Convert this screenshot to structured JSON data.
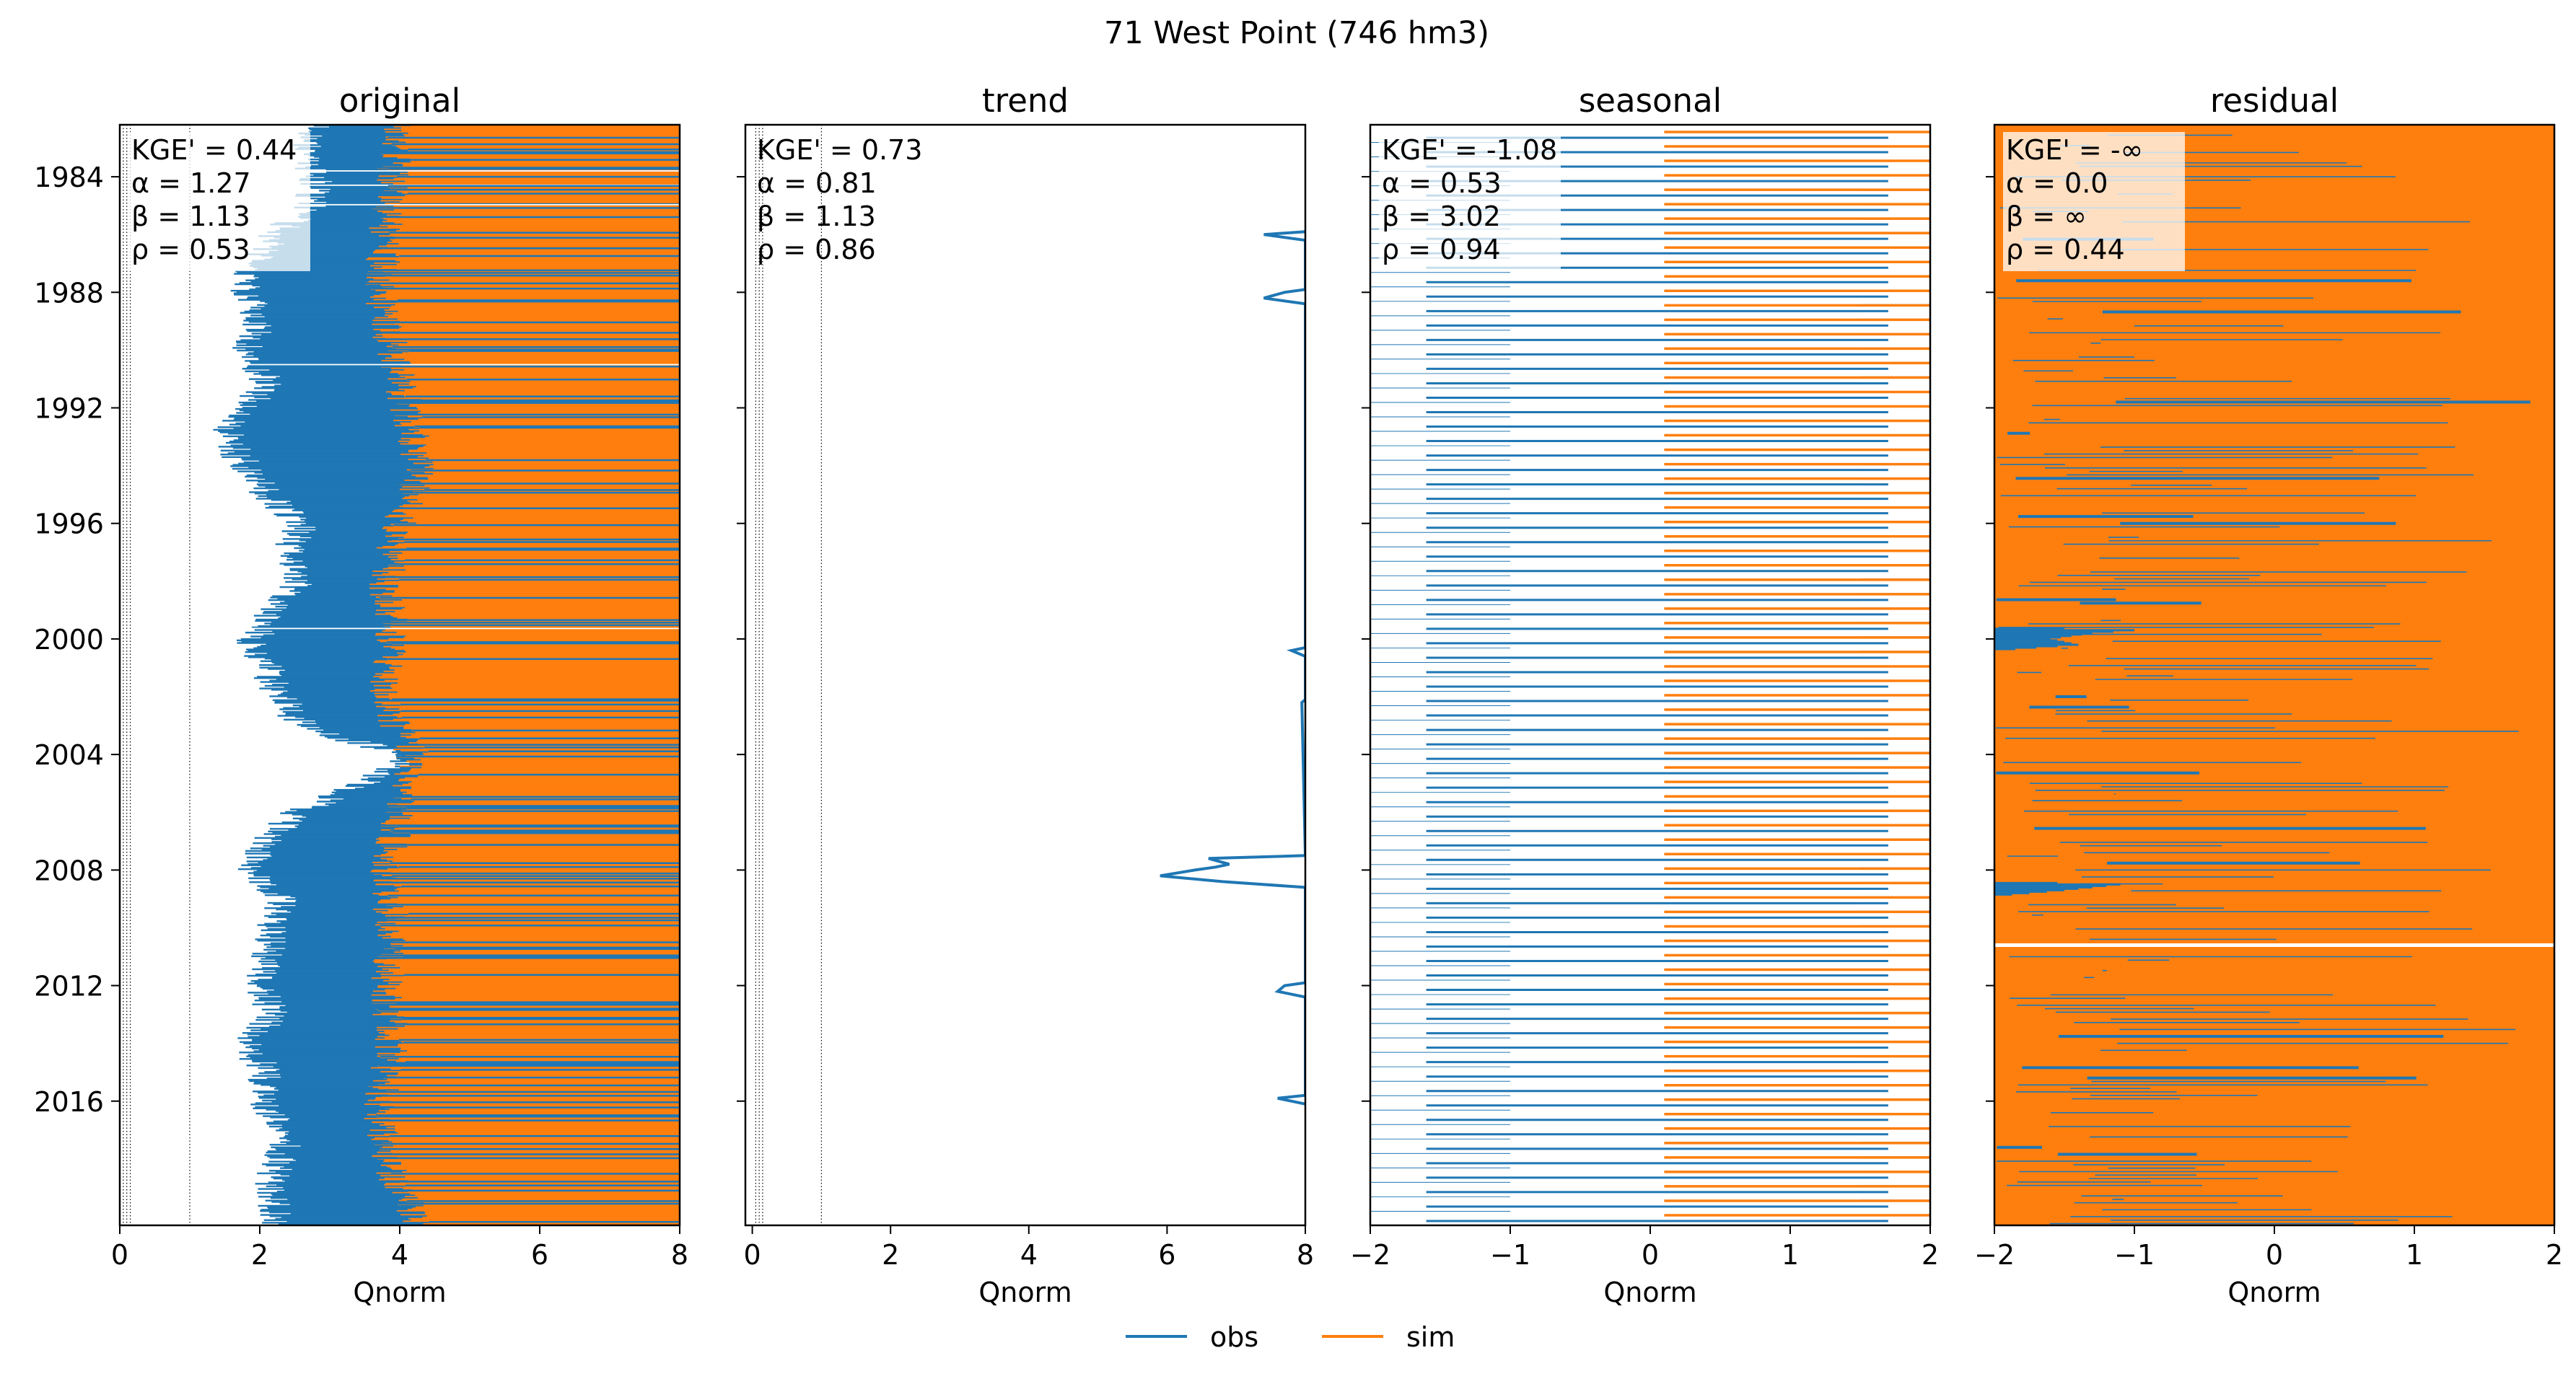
{
  "figure": {
    "suptitle": "71  West Point (746 hm3)"
  },
  "legend": {
    "placement": "bottom-center",
    "entries": [
      {
        "name": "obs",
        "color": "#1f77b4"
      },
      {
        "name": "sim",
        "color": "#ff7f0e"
      }
    ]
  },
  "colors": {
    "obs": "#1f77b4",
    "sim": "#ff7f0e",
    "stats_box": "#ffffff",
    "reference_lines": "#000000"
  },
  "chart_data": [
    {
      "type": "line",
      "title": "original",
      "xlabel": "Qnorm",
      "ylabel": "",
      "xlim": [
        0,
        8
      ],
      "xticks": [
        "0",
        "2",
        "4",
        "6",
        "8"
      ],
      "ylim": [
        1982.2,
        2020.3
      ],
      "yticks": [
        "1984",
        "1988",
        "1992",
        "1996",
        "2000",
        "2004",
        "2008",
        "2012",
        "2016"
      ],
      "yticks_visible": true,
      "reference_lines_x": [
        0.05,
        0.1,
        0.15,
        1.0
      ],
      "stats": [
        "KGE' = 0.44",
        "α = 1.27",
        "β = 1.13",
        "ρ = 0.53"
      ],
      "stats_box": "light",
      "series": [
        {
          "name": "obs",
          "note": "dense fill from about 1.5 to 2.8 Qnorm, with wide excursions to the right edge",
          "profile": [
            [
              1982.2,
              2.9
            ],
            [
              1983.0,
              2.6
            ],
            [
              1984.0,
              2.8
            ],
            [
              1985.0,
              2.7
            ],
            [
              1986.0,
              2.2
            ],
            [
              1987.0,
              1.9
            ],
            [
              1988.0,
              1.8
            ],
            [
              1989.0,
              2.0
            ],
            [
              1990.0,
              1.8
            ],
            [
              1991.0,
              2.1
            ],
            [
              1992.0,
              1.8
            ],
            [
              1993.0,
              1.5
            ],
            [
              1994.0,
              1.8
            ],
            [
              1995.0,
              2.1
            ],
            [
              1996.0,
              2.6
            ],
            [
              1997.0,
              2.4
            ],
            [
              1998.0,
              2.6
            ],
            [
              1999.0,
              2.2
            ],
            [
              2000.0,
              1.9
            ],
            [
              2001.0,
              2.1
            ],
            [
              2002.0,
              2.3
            ],
            [
              2003.0,
              2.6
            ],
            [
              2004.0,
              4.1
            ],
            [
              2005.0,
              3.5
            ],
            [
              2006.0,
              2.5
            ],
            [
              2007.0,
              2.1
            ],
            [
              2008.0,
              1.9
            ],
            [
              2009.0,
              2.3
            ],
            [
              2010.0,
              2.2
            ],
            [
              2011.0,
              2.1
            ],
            [
              2012.0,
              2.0
            ],
            [
              2013.0,
              2.2
            ],
            [
              2014.0,
              1.8
            ],
            [
              2015.0,
              2.1
            ],
            [
              2016.0,
              2.0
            ],
            [
              2017.0,
              2.4
            ],
            [
              2018.0,
              2.3
            ],
            [
              2019.0,
              2.1
            ],
            [
              2020.3,
              2.3
            ]
          ]
        },
        {
          "name": "sim",
          "note": "dense fill from about 3.8 to the right edge",
          "profile": [
            [
              1982.2,
              4.0
            ],
            [
              1984.0,
              3.9
            ],
            [
              1986.0,
              3.8
            ],
            [
              1988.0,
              3.7
            ],
            [
              1990.0,
              3.9
            ],
            [
              1992.0,
              4.1
            ],
            [
              1994.0,
              4.3
            ],
            [
              1996.0,
              4.0
            ],
            [
              1998.0,
              3.8
            ],
            [
              2000.0,
              3.9
            ],
            [
              2002.0,
              3.7
            ],
            [
              2004.0,
              4.2
            ],
            [
              2006.0,
              4.0
            ],
            [
              2008.0,
              3.8
            ],
            [
              2010.0,
              3.9
            ],
            [
              2012.0,
              3.8
            ],
            [
              2014.0,
              3.9
            ],
            [
              2016.0,
              3.7
            ],
            [
              2018.0,
              3.8
            ],
            [
              2020.3,
              4.3
            ]
          ]
        }
      ]
    },
    {
      "type": "line",
      "title": "trend",
      "xlabel": "Qnorm",
      "ylabel": "",
      "xlim": [
        -0.1,
        8
      ],
      "xticks": [
        "0",
        "2",
        "4",
        "6",
        "8"
      ],
      "ylim": [
        1982.2,
        2020.3
      ],
      "yticks": [
        "1984",
        "1988",
        "1992",
        "1996",
        "2000",
        "2004",
        "2008",
        "2012",
        "2016"
      ],
      "yticks_visible": false,
      "reference_lines_x": [
        0.05,
        0.1,
        0.15,
        1.0
      ],
      "stats": [
        "KGE' = 0.73",
        "α = 0.81",
        "β = 1.13",
        "ρ = 0.86"
      ],
      "stats_box": "none",
      "series": [
        {
          "name": "obs",
          "note": "mostly beyond the right axis limit; visible only in brief excursions",
          "profile": [
            [
              1985.9,
              8.0
            ],
            [
              1986.0,
              7.4
            ],
            [
              1986.2,
              8.0
            ],
            [
              1987.9,
              8.0
            ],
            [
              1988.0,
              7.7
            ],
            [
              1988.2,
              7.4
            ],
            [
              1988.4,
              8.0
            ],
            [
              2000.3,
              8.0
            ],
            [
              2000.4,
              7.8
            ],
            [
              2000.6,
              8.0
            ],
            [
              2002.1,
              8.0
            ],
            [
              2002.2,
              7.95
            ],
            [
              2007.5,
              8.0
            ],
            [
              2007.6,
              6.6
            ],
            [
              2007.8,
              6.9
            ],
            [
              2007.9,
              6.7
            ],
            [
              2008.0,
              6.4
            ],
            [
              2008.2,
              5.9
            ],
            [
              2008.4,
              6.8
            ],
            [
              2008.6,
              8.0
            ],
            [
              2011.9,
              8.0
            ],
            [
              2012.0,
              7.7
            ],
            [
              2012.2,
              7.6
            ],
            [
              2012.4,
              8.0
            ],
            [
              2015.8,
              8.0
            ],
            [
              2015.9,
              7.6
            ],
            [
              2016.1,
              8.0
            ]
          ]
        },
        {
          "name": "sim",
          "note": "entirely beyond the right axis limit",
          "profile": []
        }
      ]
    },
    {
      "type": "line",
      "title": "seasonal",
      "xlabel": "Qnorm",
      "ylabel": "",
      "xlim": [
        -2,
        2
      ],
      "xticks": [
        "−2",
        "−1",
        "0",
        "1",
        "2"
      ],
      "ylim": [
        1982.2,
        2020.3
      ],
      "yticks": [
        "1984",
        "1988",
        "1992",
        "1996",
        "2000",
        "2004",
        "2008",
        "2012",
        "2016"
      ],
      "yticks_visible": false,
      "reference_lines_x": [],
      "stats": [
        "KGE' = -1.08",
        "α = 0.53",
        "β = 3.02",
        "ρ = 0.94"
      ],
      "stats_box": "light",
      "series": [
        {
          "name": "obs",
          "note": "periodic, several cycles per year, between about -1.6 and 1.7 Qnorm",
          "period_years": 0.5,
          "range": [
            -1.6,
            1.7
          ]
        },
        {
          "name": "sim",
          "note": "periodic, mostly between 0 and the right edge",
          "period_years": 0.5,
          "range": [
            0.1,
            2.0
          ]
        }
      ]
    },
    {
      "type": "line",
      "title": "residual",
      "xlabel": "Qnorm",
      "ylabel": "",
      "xlim": [
        -2,
        2
      ],
      "xticks": [
        "−2",
        "−1",
        "0",
        "1",
        "2"
      ],
      "ylim": [
        1982.2,
        2020.3
      ],
      "yticks": [
        "1984",
        "1988",
        "1992",
        "1996",
        "2000",
        "2004",
        "2008",
        "2012",
        "2016"
      ],
      "yticks_visible": false,
      "reference_lines_x": [],
      "stats": [
        "KGE' = -∞",
        "α = 0.0",
        "β = ∞",
        "ρ = 0.44"
      ],
      "stats_box": "light",
      "series": [
        {
          "name": "obs",
          "note": "thin traces across the full width, dense band near -2 to -1.2 around 2000 and 2008",
          "profile": [
            [
              1982.2,
              -2.0
            ],
            [
              1984.0,
              -2.0
            ],
            [
              1999.6,
              -2.0
            ],
            [
              1999.7,
              -1.0
            ],
            [
              1999.8,
              -1.3
            ],
            [
              2000.0,
              -1.6
            ],
            [
              2000.2,
              -1.4
            ],
            [
              2000.4,
              -2.0
            ],
            [
              2008.4,
              -2.0
            ],
            [
              2008.5,
              -1.1
            ],
            [
              2008.7,
              -1.5
            ],
            [
              2008.9,
              -2.0
            ],
            [
              2020.3,
              -2.0
            ]
          ]
        },
        {
          "name": "sim",
          "note": "fills the full width of the panel",
          "range": [
            -2,
            2
          ]
        }
      ]
    }
  ]
}
